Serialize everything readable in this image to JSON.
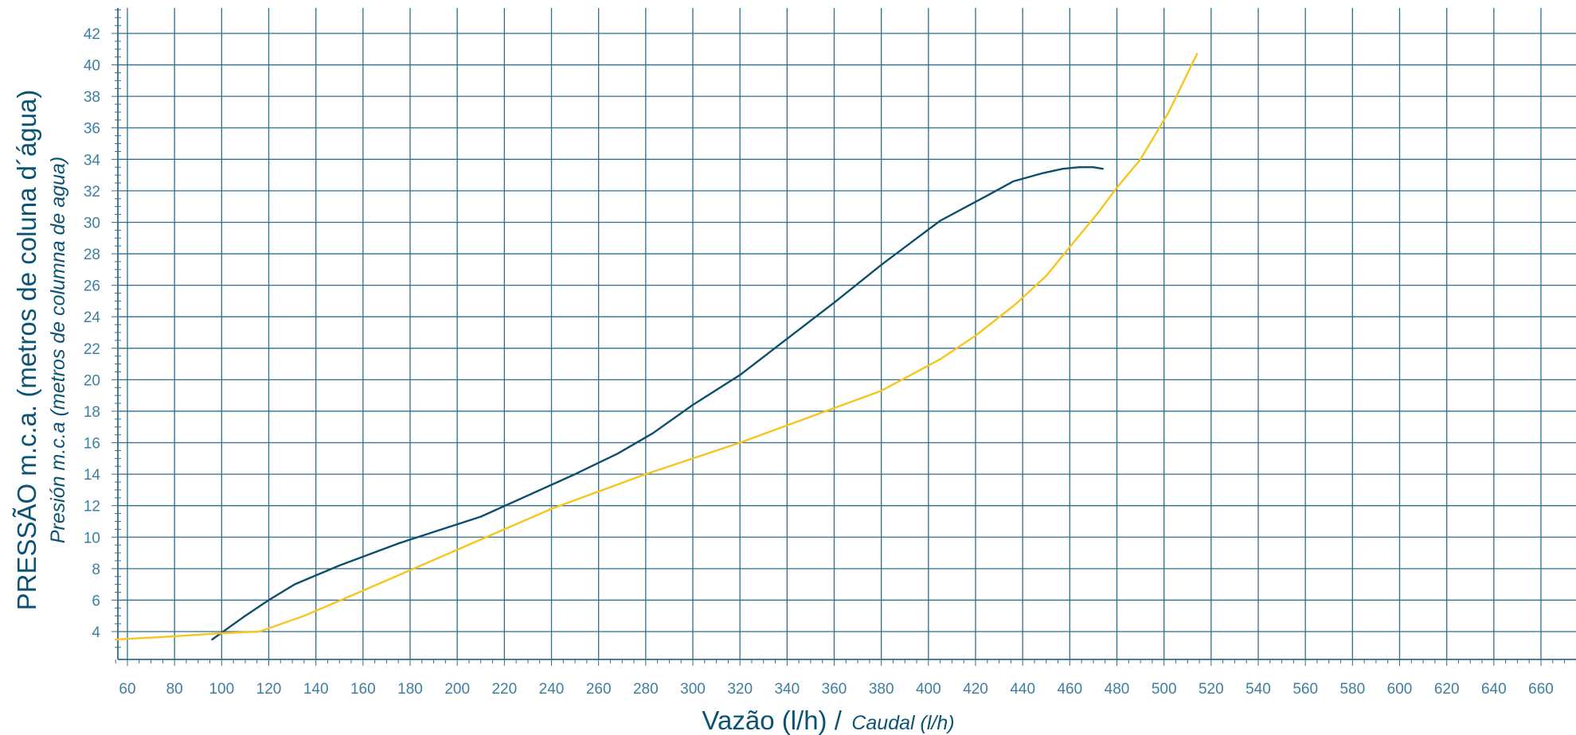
{
  "chart_data": {
    "type": "line",
    "title": "",
    "xlabel": "Vazão (l/h) /",
    "xlabel_alt": "Caudal (l/h)",
    "ylabel": "PRESSÃO  m.c.a.  (metros de coluna d´água)",
    "ylabel_alt": "Presión m.c.a (metros de columna de agua)",
    "xlim": [
      55,
      675
    ],
    "ylim": [
      2,
      43.5
    ],
    "x_ticks": [
      60,
      80,
      100,
      120,
      140,
      160,
      180,
      200,
      220,
      240,
      260,
      280,
      300,
      320,
      340,
      360,
      380,
      400,
      420,
      440,
      460,
      480,
      500,
      520,
      540,
      560,
      580,
      600,
      620,
      640,
      660
    ],
    "y_ticks": [
      4,
      6,
      8,
      10,
      12,
      14,
      16,
      18,
      20,
      22,
      24,
      26,
      28,
      30,
      32,
      34,
      36,
      38,
      40,
      42
    ],
    "grid": true,
    "legend": "none",
    "colors": {
      "grid": "#2e6e8e",
      "text": "#0b5375",
      "label": "#3d7f9f"
    },
    "series": [
      {
        "color": "#0b4f6c",
        "x": [
          96,
          110,
          120,
          131,
          150,
          175,
          210,
          250,
          268,
          283,
          300,
          320,
          340,
          360,
          380,
          405,
          425,
          436,
          448,
          457,
          464,
          470,
          474
        ],
        "y": [
          3.5,
          5,
          6,
          7,
          8.2,
          9.6,
          11.3,
          14,
          15.3,
          16.6,
          18.4,
          20.3,
          22.6,
          24.9,
          27.3,
          30.1,
          31.7,
          32.6,
          33.1,
          33.4,
          33.5,
          33.5,
          33.4
        ]
      },
      {
        "color": "#f7c51e",
        "x": [
          55,
          80,
          100,
          116,
          135,
          160,
          200,
          240,
          280,
          320,
          360,
          380,
          405,
          420,
          437,
          450,
          462,
          472,
          480,
          490,
          502,
          514
        ],
        "y": [
          3.5,
          3.7,
          3.9,
          4,
          5,
          6.6,
          9.2,
          11.8,
          14,
          16,
          18.2,
          19.3,
          21.3,
          22.8,
          24.8,
          26.6,
          28.8,
          30.6,
          32.2,
          34,
          37,
          40.7
        ]
      }
    ]
  }
}
